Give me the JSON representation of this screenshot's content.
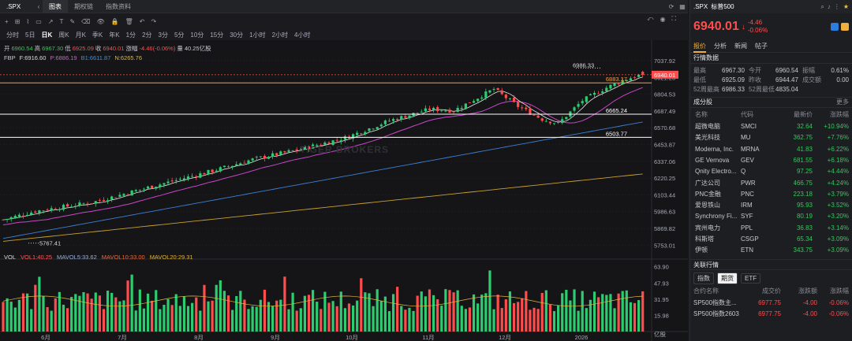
{
  "window": {
    "symbol": ".SPX",
    "tabs": [
      "图表",
      "期权链",
      "指数资料"
    ],
    "active_tab": 0
  },
  "toolbar": {
    "tools": [
      "+",
      "⊞",
      "⌇",
      "▭",
      "↗",
      "T",
      "✎",
      "⌫",
      "👁",
      "🔒",
      "🗑",
      "↶",
      "↷"
    ]
  },
  "periods": {
    "items": [
      "分时",
      "5日",
      "日K",
      "周K",
      "月K",
      "季K",
      "年K",
      "1分",
      "2分",
      "3分",
      "5分",
      "10分",
      "15分",
      "30分",
      "1小时",
      "2小时",
      "4小时"
    ],
    "active": 2
  },
  "ohlc": {
    "open_label": "开",
    "open": "6960.54",
    "high_label": "高",
    "high": "6967.30",
    "low_label": "低",
    "low": "6925.09",
    "close_label": "收",
    "close": "6940.01",
    "chg_label": "涨幅",
    "chg": "-4.46(-0.06%)",
    "vol_label": "量",
    "vol": "40.25亿股"
  },
  "indicator": {
    "name": "FBP",
    "f": "F:6916.60",
    "p": "P:6886.19",
    "b1": "B1:6611.87",
    "n": "N:6265.76"
  },
  "vol_legend": {
    "name": "VOL",
    "vol1": "VOL1:40.25",
    "mavol5": "MAVOL5:33.62",
    "mavol10": "MAVOL10:33.00",
    "mavol20": "MAVOL20:29.31"
  },
  "watermark": "TIGER BROKERS",
  "chart_data": {
    "type": "candlestick",
    "price_axis_ticks": [
      "7037.92",
      "6921.23",
      "6804.53",
      "6687.49",
      "6570.68",
      "6453.87",
      "6337.06",
      "6220.25",
      "6103.44",
      "5986.63",
      "5869.82",
      "5753.01"
    ],
    "price_range": [
      5700,
      7060
    ],
    "vol_axis_ticks": [
      "63.90",
      "47.93",
      "31.95",
      "15.98",
      "亿股"
    ],
    "vol_range": [
      0,
      66
    ],
    "x_labels": [
      "6月",
      "7月",
      "8月",
      "9月",
      "10月",
      "11月",
      "12月",
      "2026"
    ],
    "last_price": "6940.01",
    "levels": [
      {
        "value": 6883.17,
        "label": "6883.17",
        "color": "#ff9a3c"
      },
      {
        "value": 6665.24,
        "label": "6665.24",
        "color": "#ffffff"
      },
      {
        "value": 6503.77,
        "label": "6503.77",
        "color": "#ffffff"
      }
    ],
    "annotations": [
      {
        "label": "6986.33",
        "value": 6986.33
      },
      {
        "label": "5767.41",
        "value": 5767.41
      }
    ]
  },
  "panel": {
    "symbol": ".SPX",
    "name": "标普500",
    "price": "6940.01",
    "arrow": "↓",
    "chg": "-4.46",
    "chg_pct": "-0.06%",
    "tabs": [
      "报价",
      "分析",
      "新闻",
      "帖子"
    ],
    "active_tab": 0,
    "section_market": "行情数据",
    "q": [
      {
        "l1": "最高",
        "v1": "6967.30",
        "l2": "今开",
        "v2": "6960.54",
        "l3": "振幅",
        "v3": "0.61%"
      },
      {
        "l1": "最低",
        "v1": "6925.09",
        "l2": "昨收",
        "v2": "6944.47",
        "l3": "成交额",
        "v3": "0.00"
      },
      {
        "l1": "52周最高",
        "v1": "6986.33",
        "l2": "52周最低",
        "v2": "4835.04",
        "l3": "",
        "v3": ""
      }
    ],
    "section_const": "成分股",
    "more": "更多",
    "cols": [
      "名称",
      "代码",
      "最新价",
      "涨跌幅"
    ],
    "stocks": [
      {
        "name": "超微电脑",
        "code": "SMCI",
        "price": "32.64",
        "pct": "+10.94%"
      },
      {
        "name": "美光科技",
        "code": "MU",
        "price": "362.75",
        "pct": "+7.76%"
      },
      {
        "name": "Moderna, Inc.",
        "code": "MRNA",
        "price": "41.83",
        "pct": "+6.22%"
      },
      {
        "name": "GE Vernova",
        "code": "GEV",
        "price": "681.55",
        "pct": "+6.18%"
      },
      {
        "name": "Qnity Electro...",
        "code": "Q",
        "price": "97.25",
        "pct": "+4.44%"
      },
      {
        "name": "广达公司",
        "code": "PWR",
        "price": "466.75",
        "pct": "+4.24%"
      },
      {
        "name": "PNC金融",
        "code": "PNC",
        "price": "223.18",
        "pct": "+3.79%"
      },
      {
        "name": "爱恩铁山",
        "code": "IRM",
        "price": "95.93",
        "pct": "+3.52%"
      },
      {
        "name": "Synchrony Fi...",
        "code": "SYF",
        "price": "80.19",
        "pct": "+3.20%"
      },
      {
        "name": "宾州电力",
        "code": "PPL",
        "price": "36.83",
        "pct": "+3.14%"
      },
      {
        "name": "科斯塔",
        "code": "CSGP",
        "price": "65.34",
        "pct": "+3.09%"
      },
      {
        "name": "伊顿",
        "code": "ETN",
        "price": "343.75",
        "pct": "+3.09%"
      }
    ],
    "section_related": "关联行情",
    "rel_tabs": [
      "指数",
      "期货",
      "ETF"
    ],
    "rel_active": 1,
    "rel_cols": [
      "合约名称",
      "成交价",
      "涨跌额",
      "涨跌幅"
    ],
    "rel_rows": [
      {
        "name": "SP500指数主...",
        "price": "6977.75",
        "chg": "-4.00",
        "pct": "-0.06%"
      },
      {
        "name": "SP500指数2603",
        "price": "6977.75",
        "chg": "-4.00",
        "pct": "-0.06%"
      }
    ]
  }
}
